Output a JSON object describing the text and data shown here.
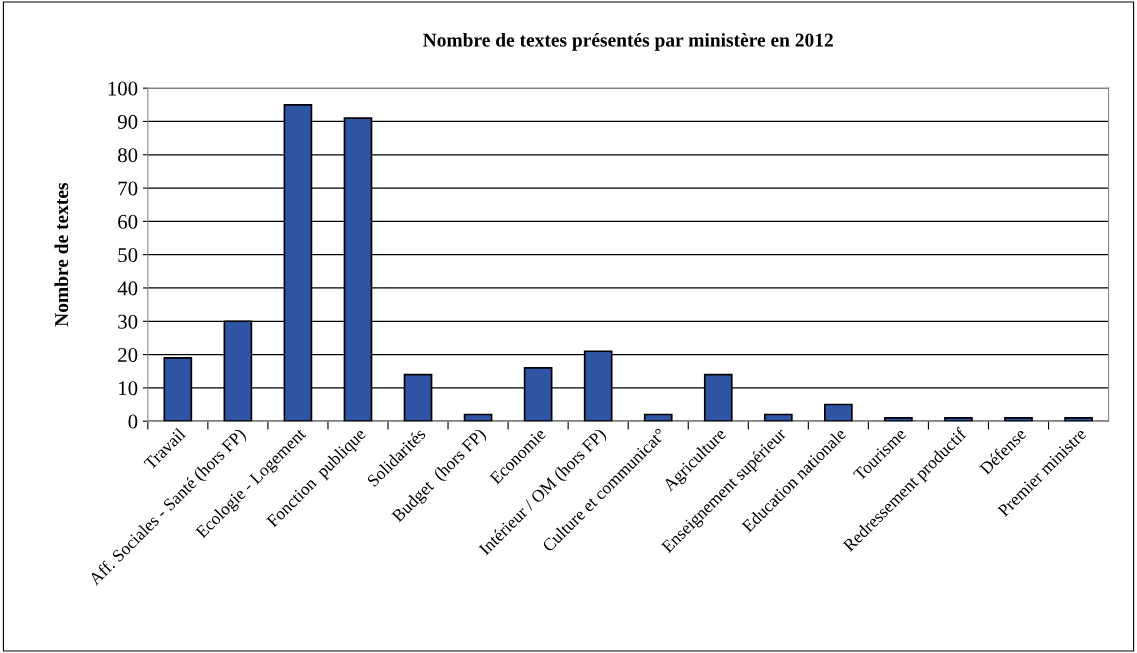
{
  "chart_data": {
    "type": "bar",
    "title": "Nombre de textes présentés par ministère en 2012",
    "ylabel": "Nombre de textes",
    "categories": [
      "Travail",
      "Aff. Sociales - Santé (hors FP)",
      "Ecologie - Logement",
      "Fonction  publique",
      "Solidarités",
      "Budget  (hors FP)",
      "Economie",
      "Intérieur / OM (hors FP)",
      "Culture et communicat°",
      "Agriculture",
      "Enseignement supérieur",
      "Education nationale",
      "Tourisme",
      "Redressement productif",
      "Défense",
      "Premier ministre"
    ],
    "values": [
      19,
      30,
      95,
      91,
      14,
      2,
      16,
      21,
      2,
      14,
      2,
      5,
      1,
      1,
      1,
      1
    ],
    "color": "#3054a4",
    "ylim": [
      0,
      100
    ],
    "yticks": [
      0,
      10,
      20,
      30,
      40,
      50,
      60,
      70,
      80,
      90,
      100
    ],
    "grid": "y",
    "legend": false
  }
}
